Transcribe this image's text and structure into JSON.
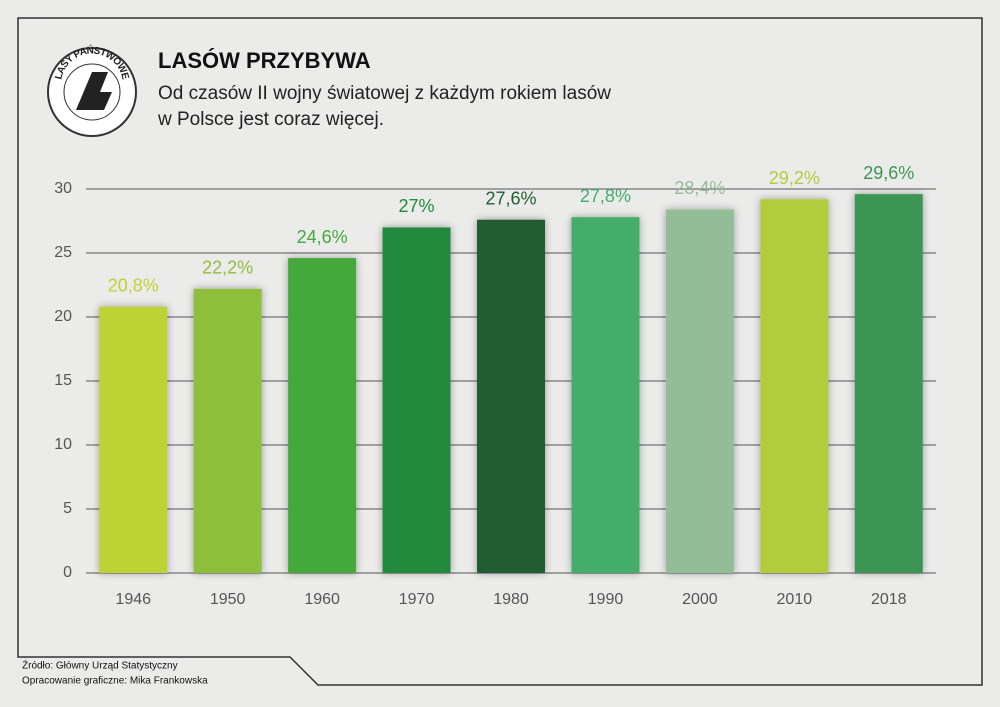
{
  "chart_data": {
    "type": "bar",
    "title": "LASÓW PRZYBYWA",
    "subtitle_lines": [
      "Od czasów II wojny światowej z każdym rokiem lasów",
      "w Polsce jest coraz więcej."
    ],
    "logo": "LASY PAŃSTWOWE",
    "categories": [
      "1946",
      "1950",
      "1960",
      "1970",
      "1980",
      "1990",
      "2000",
      "2010",
      "2018"
    ],
    "values": [
      20.8,
      22.2,
      24.6,
      27,
      27.6,
      27.8,
      28.4,
      29.2,
      29.6
    ],
    "value_labels": [
      "20,8%",
      "22,2%",
      "24,6%",
      "27%",
      "27,6%",
      "27,8%",
      "28,4%",
      "29,2%",
      "29,6%"
    ],
    "colors": [
      "#bdd334",
      "#8dbf3e",
      "#45a83c",
      "#228a3c",
      "#235c30",
      "#45ad6a",
      "#93bd97",
      "#b2cc3a",
      "#3e9553"
    ],
    "ylim": [
      0,
      30
    ],
    "yticks": [
      0,
      5,
      10,
      15,
      20,
      25,
      30
    ],
    "grid": true,
    "notes": [
      "Źródło: Główny Urząd Statystyczny",
      "Opracowanie graficzne: Mika Frankowska"
    ]
  }
}
